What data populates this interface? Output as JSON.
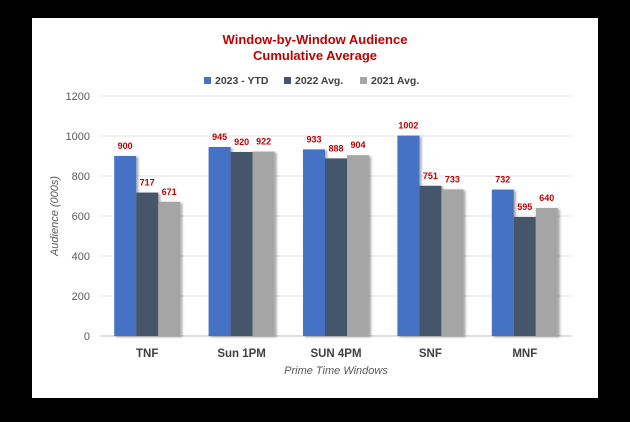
{
  "chart_data": {
    "type": "bar",
    "title_line1": "Window-by-Window Audience",
    "title_line2": "Cumulative Average",
    "xlabel": "Prime Time Windows",
    "ylabel": "Audience (000s)",
    "ylim": [
      0,
      1200
    ],
    "yticks": [
      0,
      200,
      400,
      600,
      800,
      1000,
      1200
    ],
    "grid": true,
    "legend_position": "top-center",
    "categories": [
      "TNF",
      "Sun 1PM",
      "SUN 4PM",
      "SNF",
      "MNF"
    ],
    "series": [
      {
        "name": "2023 - YTD",
        "color": "#4472C4",
        "values": [
          900,
          945,
          933,
          1002,
          732
        ]
      },
      {
        "name": "2022 Avg.",
        "color": "#44546A",
        "values": [
          717,
          920,
          888,
          751,
          595
        ]
      },
      {
        "name": "2021 Avg.",
        "color": "#A5A5A5",
        "values": [
          671,
          922,
          904,
          733,
          640
        ]
      }
    ],
    "label_color": "#C00000",
    "title_color": "#C00000"
  }
}
